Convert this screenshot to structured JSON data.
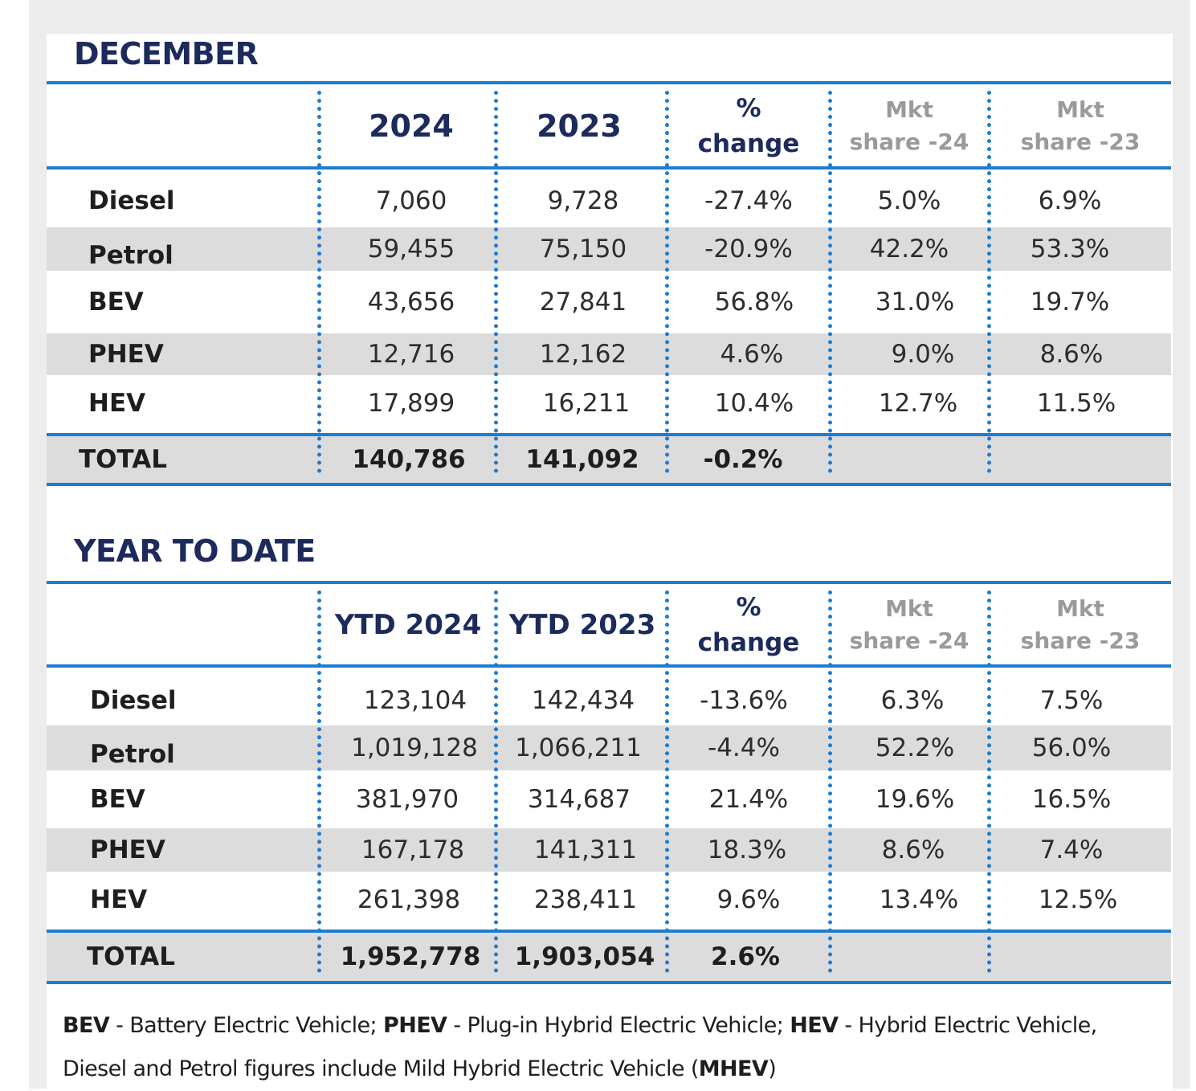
{
  "december": {
    "title": "DECEMBER",
    "headers": {
      "col1": "2024",
      "col2": "2023",
      "change_line1": "%",
      "change_line2": "change",
      "share24_line1": "Mkt",
      "share24_line2": "share -24",
      "share23_line1": "Mkt",
      "share23_line2": "share -23"
    },
    "rows": [
      {
        "label": "Diesel",
        "v2024": "7,060",
        "v2023": "9,728",
        "change": "-27.4%",
        "share24": "5.0%",
        "share23": "6.9%"
      },
      {
        "label": "Petrol",
        "v2024": "59,455",
        "v2023": "75,150",
        "change": "-20.9%",
        "share24": "42.2%",
        "share23": "53.3%"
      },
      {
        "label": "BEV",
        "v2024": "43,656",
        "v2023": "27,841",
        "change": "56.8%",
        "share24": "31.0%",
        "share23": "19.7%"
      },
      {
        "label": "PHEV",
        "v2024": "12,716",
        "v2023": "12,162",
        "change": "4.6%",
        "share24": "9.0%",
        "share23": "8.6%"
      },
      {
        "label": "HEV",
        "v2024": "17,899",
        "v2023": "16,211",
        "change": "10.4%",
        "share24": "12.7%",
        "share23": "11.5%"
      }
    ],
    "total": {
      "label": "TOTAL",
      "v2024": "140,786",
      "v2023": "141,092",
      "change": "-0.2%"
    }
  },
  "ytd": {
    "title": "YEAR TO DATE",
    "headers": {
      "col1": "YTD 2024",
      "col2": "YTD 2023",
      "change_line1": "%",
      "change_line2": "change",
      "share24_line1": "Mkt",
      "share24_line2": "share -24",
      "share23_line1": "Mkt",
      "share23_line2": "share -23"
    },
    "rows": [
      {
        "label": "Diesel",
        "v2024": "123,104",
        "v2023": "142,434",
        "change": "-13.6%",
        "share24": "6.3%",
        "share23": "7.5%"
      },
      {
        "label": "Petrol",
        "v2024": "1,019,128",
        "v2023": "1,066,211",
        "change": "-4.4%",
        "share24": "52.2%",
        "share23": "56.0%"
      },
      {
        "label": "BEV",
        "v2024": "381,970",
        "v2023": "314,687",
        "change": "21.4%",
        "share24": "19.6%",
        "share23": "16.5%"
      },
      {
        "label": "PHEV",
        "v2024": "167,178",
        "v2023": "141,311",
        "change": "18.3%",
        "share24": "8.6%",
        "share23": "7.4%"
      },
      {
        "label": "HEV",
        "v2024": "261,398",
        "v2023": "238,411",
        "change": "9.6%",
        "share24": "13.4%",
        "share23": "12.5%"
      }
    ],
    "total": {
      "label": "TOTAL",
      "v2024": "1,952,778",
      "v2023": "1,903,054",
      "change": "2.6%"
    }
  },
  "footnote": {
    "bev_abbr": "BEV",
    "bev_def": " - Battery Electric Vehicle; ",
    "phev_abbr": "PHEV",
    "phev_def": " - Plug-in Hybrid Electric Vehicle; ",
    "hev_abbr": "HEV",
    "hev_def": " - Hybrid Electric Vehicle, ",
    "mhev_text": "Diesel and Petrol figures include Mild Hybrid Electric Vehicle (",
    "mhev_abbr": "MHEV",
    "close_paren": ")"
  },
  "colors": {
    "accent_blue": "#1f7ccf",
    "title_navy": "#1c2a5c",
    "row_shade": "#dcdcdc",
    "muted_header": "#9a9a9a"
  }
}
